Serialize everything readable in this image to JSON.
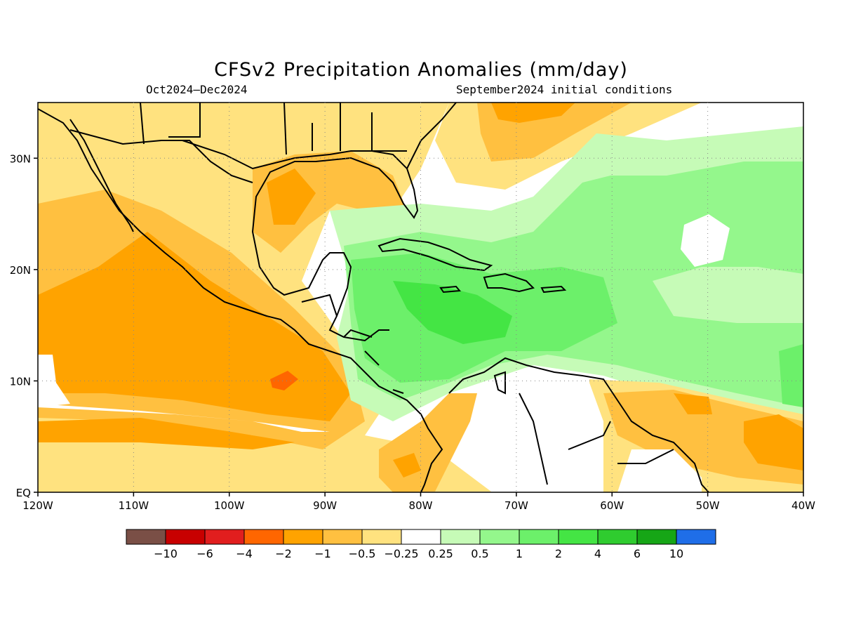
{
  "title": "CFSv2 Precipitation Anomalies (mm/day)",
  "period": "Oct2024–Dec2024",
  "initial_conditions": "September2024 initial conditions",
  "map": {
    "lon_ticks": [
      "120W",
      "110W",
      "100W",
      "90W",
      "80W",
      "70W",
      "60W",
      "50W",
      "40W"
    ],
    "lat_ticks": [
      "EQ",
      "10N",
      "20N",
      "30N"
    ],
    "lon_range": [
      -120,
      -40
    ],
    "lat_range": [
      0,
      35
    ],
    "grid": "dotted"
  },
  "colorbar": {
    "colors": [
      "#7a4f46",
      "#c80000",
      "#e11e1e",
      "#ff6600",
      "#ffa300",
      "#ffc040",
      "#ffe27f",
      "#ffffff",
      "#c6fbb7",
      "#94f78c",
      "#6cf06a",
      "#44e544",
      "#2fcc2f",
      "#16a616",
      "#1f6ee8"
    ],
    "labels": [
      "−10",
      "−6",
      "−4",
      "−2",
      "−1",
      "−0.5",
      "−0.25",
      "0.25",
      "0.5",
      "1",
      "2",
      "4",
      "6",
      "10"
    ]
  }
}
